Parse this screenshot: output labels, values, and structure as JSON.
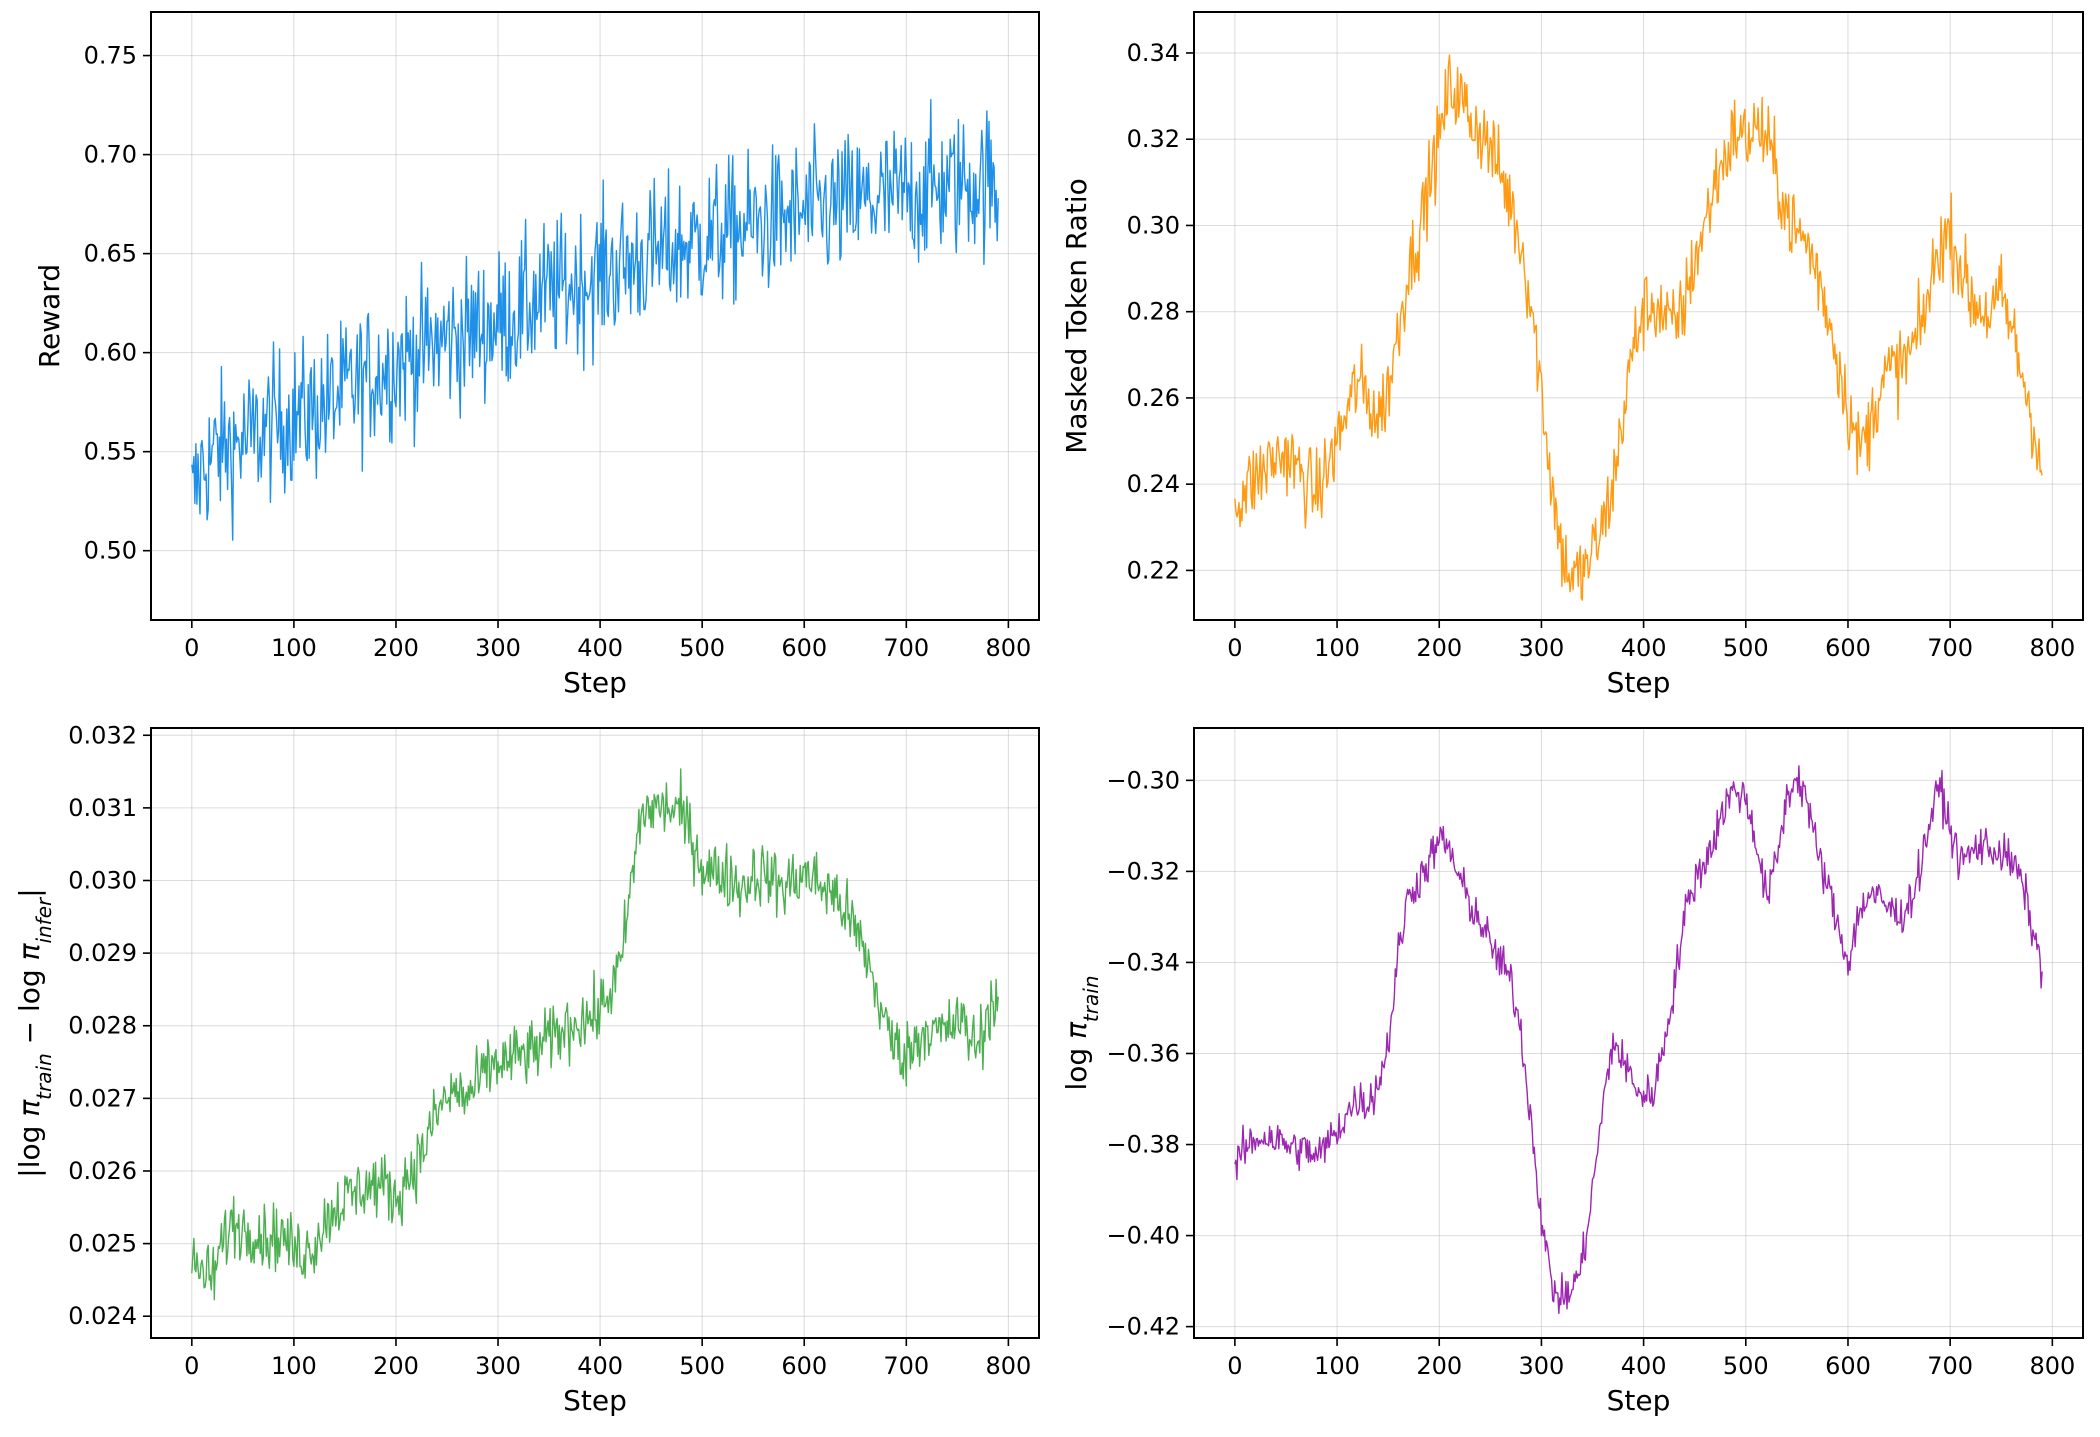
{
  "chart_data": [
    {
      "type": "line",
      "xlabel": "Step",
      "ylabel": "Reward",
      "xlim": [
        -40,
        830
      ],
      "ylim": [
        0.465,
        0.772
      ],
      "xticks": [
        0,
        100,
        200,
        300,
        400,
        500,
        600,
        700,
        800
      ],
      "yticks": [
        0.5,
        0.55,
        0.6,
        0.65,
        0.7,
        0.75
      ],
      "ytick_labels": [
        "0.50",
        "0.55",
        "0.60",
        "0.65",
        "0.70",
        "0.75"
      ],
      "grid": true,
      "color": "#1E90E8",
      "series": [
        {
          "x": [
            0,
            10,
            20,
            30,
            40,
            50,
            60,
            70,
            80,
            90,
            100,
            110,
            120,
            130,
            140,
            150,
            160,
            170,
            180,
            190,
            200,
            210,
            220,
            230,
            240,
            250,
            260,
            270,
            280,
            290,
            300,
            310,
            320,
            330,
            340,
            350,
            360,
            370,
            380,
            390,
            400,
            410,
            420,
            430,
            440,
            450,
            460,
            470,
            480,
            490,
            500,
            510,
            520,
            530,
            540,
            550,
            560,
            570,
            580,
            590,
            600,
            610,
            620,
            630,
            640,
            650,
            660,
            670,
            680,
            690,
            700,
            710,
            720,
            730,
            740,
            750,
            760,
            770,
            780,
            790
          ],
          "values": [
            0.525,
            0.542,
            0.548,
            0.552,
            0.553,
            0.555,
            0.557,
            0.561,
            0.564,
            0.566,
            0.568,
            0.569,
            0.571,
            0.574,
            0.576,
            0.58,
            0.583,
            0.587,
            0.59,
            0.592,
            0.595,
            0.598,
            0.6,
            0.602,
            0.605,
            0.607,
            0.608,
            0.61,
            0.612,
            0.614,
            0.615,
            0.618,
            0.62,
            0.624,
            0.627,
            0.63,
            0.632,
            0.634,
            0.636,
            0.637,
            0.64,
            0.642,
            0.643,
            0.645,
            0.647,
            0.649,
            0.65,
            0.652,
            0.654,
            0.655,
            0.657,
            0.659,
            0.66,
            0.661,
            0.663,
            0.664,
            0.665,
            0.667,
            0.668,
            0.669,
            0.67,
            0.671,
            0.672,
            0.673,
            0.674,
            0.675,
            0.676,
            0.677,
            0.678,
            0.679,
            0.68,
            0.681,
            0.682,
            0.683,
            0.684,
            0.685,
            0.686,
            0.686,
            0.687,
            0.678
          ]
        }
      ]
    },
    {
      "type": "line",
      "xlabel": "Step",
      "ylabel": "Masked Token Ratio",
      "xlim": [
        -40,
        830
      ],
      "ylim": [
        0.2085,
        0.3495
      ],
      "xticks": [
        0,
        100,
        200,
        300,
        400,
        500,
        600,
        700,
        800
      ],
      "yticks": [
        0.22,
        0.24,
        0.26,
        0.28,
        0.3,
        0.32,
        0.34
      ],
      "ytick_labels": [
        "0.22",
        "0.24",
        "0.26",
        "0.28",
        "0.30",
        "0.32",
        "0.34"
      ],
      "grid": true,
      "color": "#FF9A12",
      "series": [
        {
          "x": [
            0,
            10,
            20,
            30,
            40,
            50,
            60,
            70,
            80,
            90,
            100,
            110,
            120,
            130,
            140,
            150,
            160,
            170,
            180,
            190,
            200,
            210,
            220,
            230,
            240,
            250,
            260,
            270,
            280,
            290,
            300,
            310,
            320,
            330,
            340,
            350,
            360,
            370,
            380,
            390,
            400,
            410,
            420,
            430,
            440,
            450,
            460,
            470,
            480,
            490,
            500,
            510,
            520,
            530,
            540,
            550,
            560,
            570,
            580,
            590,
            600,
            610,
            620,
            630,
            640,
            650,
            660,
            670,
            680,
            690,
            700,
            710,
            720,
            730,
            740,
            750,
            760,
            770,
            780,
            790
          ],
          "values": [
            0.235,
            0.239,
            0.241,
            0.244,
            0.246,
            0.247,
            0.244,
            0.24,
            0.238,
            0.243,
            0.25,
            0.257,
            0.264,
            0.26,
            0.255,
            0.262,
            0.276,
            0.29,
            0.298,
            0.31,
            0.32,
            0.332,
            0.33,
            0.325,
            0.322,
            0.318,
            0.312,
            0.305,
            0.296,
            0.282,
            0.262,
            0.24,
            0.224,
            0.218,
            0.219,
            0.224,
            0.23,
            0.24,
            0.256,
            0.272,
            0.28,
            0.282,
            0.279,
            0.276,
            0.282,
            0.292,
            0.3,
            0.31,
            0.316,
            0.322,
            0.32,
            0.323,
            0.32,
            0.312,
            0.303,
            0.298,
            0.296,
            0.289,
            0.28,
            0.269,
            0.258,
            0.248,
            0.252,
            0.262,
            0.266,
            0.267,
            0.27,
            0.275,
            0.285,
            0.296,
            0.298,
            0.291,
            0.283,
            0.281,
            0.279,
            0.284,
            0.276,
            0.266,
            0.256,
            0.242
          ]
        }
      ]
    },
    {
      "type": "line",
      "xlabel": "Step",
      "ylabel": "|log π_train − log π_infer|",
      "xlim": [
        -40,
        830
      ],
      "ylim": [
        0.0237,
        0.0321
      ],
      "xticks": [
        0,
        100,
        200,
        300,
        400,
        500,
        600,
        700,
        800
      ],
      "yticks": [
        0.024,
        0.025,
        0.026,
        0.027,
        0.028,
        0.029,
        0.03,
        0.031,
        0.032
      ],
      "ytick_labels": [
        "0.024",
        "0.025",
        "0.026",
        "0.027",
        "0.028",
        "0.029",
        "0.030",
        "0.031",
        "0.032"
      ],
      "grid": true,
      "color": "#4CAF50",
      "series": [
        {
          "x": [
            0,
            10,
            20,
            30,
            40,
            50,
            60,
            70,
            80,
            90,
            100,
            110,
            120,
            130,
            140,
            150,
            160,
            170,
            180,
            190,
            200,
            210,
            220,
            230,
            240,
            250,
            260,
            270,
            280,
            290,
            300,
            310,
            320,
            330,
            340,
            350,
            360,
            370,
            380,
            390,
            400,
            410,
            420,
            430,
            440,
            450,
            460,
            470,
            480,
            490,
            500,
            510,
            520,
            530,
            540,
            550,
            560,
            570,
            580,
            590,
            600,
            610,
            620,
            630,
            640,
            650,
            660,
            670,
            680,
            690,
            700,
            710,
            720,
            730,
            740,
            750,
            760,
            770,
            780,
            790
          ],
          "values": [
            0.0247,
            0.0246,
            0.0245,
            0.025,
            0.0253,
            0.0252,
            0.0252,
            0.0251,
            0.0251,
            0.0251,
            0.0249,
            0.0249,
            0.025,
            0.0253,
            0.0255,
            0.0256,
            0.0257,
            0.0258,
            0.0258,
            0.0258,
            0.0256,
            0.0259,
            0.0261,
            0.0264,
            0.0268,
            0.027,
            0.0271,
            0.027,
            0.0272,
            0.0274,
            0.0275,
            0.0275,
            0.0276,
            0.0276,
            0.0277,
            0.0278,
            0.0279,
            0.028,
            0.0281,
            0.0281,
            0.0282,
            0.0285,
            0.0288,
            0.0299,
            0.0309,
            0.031,
            0.031,
            0.031,
            0.0309,
            0.0306,
            0.0302,
            0.0301,
            0.0301,
            0.03,
            0.0299,
            0.0301,
            0.0301,
            0.03,
            0.0299,
            0.03,
            0.0301,
            0.03,
            0.0299,
            0.0298,
            0.0296,
            0.0293,
            0.029,
            0.0285,
            0.028,
            0.0277,
            0.0276,
            0.0278,
            0.028,
            0.0279,
            0.0279,
            0.0281,
            0.0279,
            0.0277,
            0.0282,
            0.0284
          ]
        }
      ]
    },
    {
      "type": "line",
      "xlabel": "Step",
      "ylabel": "log π_train",
      "xlim": [
        -40,
        830
      ],
      "ylim": [
        -0.4225,
        -0.2885
      ],
      "xticks": [
        0,
        100,
        200,
        300,
        400,
        500,
        600,
        700,
        800
      ],
      "yticks": [
        -0.42,
        -0.4,
        -0.38,
        -0.36,
        -0.34,
        -0.32,
        -0.3
      ],
      "ytick_labels": [
        "−0.42",
        "−0.40",
        "−0.38",
        "−0.36",
        "−0.34",
        "−0.32",
        "−0.30"
      ],
      "grid": true,
      "color": "#9C27B0",
      "series": [
        {
          "x": [
            0,
            10,
            20,
            30,
            40,
            50,
            60,
            70,
            80,
            90,
            100,
            110,
            120,
            130,
            140,
            150,
            160,
            170,
            180,
            190,
            200,
            210,
            220,
            230,
            240,
            250,
            260,
            270,
            280,
            290,
            300,
            310,
            320,
            330,
            340,
            350,
            360,
            370,
            380,
            390,
            400,
            410,
            420,
            430,
            440,
            450,
            460,
            470,
            480,
            490,
            500,
            510,
            520,
            530,
            540,
            550,
            560,
            570,
            580,
            590,
            600,
            610,
            620,
            630,
            640,
            650,
            660,
            670,
            680,
            690,
            700,
            710,
            720,
            730,
            740,
            750,
            760,
            770,
            780,
            790
          ],
          "values": [
            -0.385,
            -0.381,
            -0.379,
            -0.378,
            -0.379,
            -0.38,
            -0.381,
            -0.381,
            -0.383,
            -0.38,
            -0.377,
            -0.373,
            -0.37,
            -0.371,
            -0.367,
            -0.358,
            -0.338,
            -0.325,
            -0.322,
            -0.318,
            -0.313,
            -0.315,
            -0.322,
            -0.327,
            -0.331,
            -0.336,
            -0.34,
            -0.344,
            -0.355,
            -0.375,
            -0.396,
            -0.411,
            -0.414,
            -0.412,
            -0.406,
            -0.39,
            -0.372,
            -0.357,
            -0.362,
            -0.366,
            -0.37,
            -0.368,
            -0.358,
            -0.345,
            -0.33,
            -0.322,
            -0.318,
            -0.312,
            -0.305,
            -0.302,
            -0.304,
            -0.313,
            -0.326,
            -0.318,
            -0.304,
            -0.299,
            -0.304,
            -0.316,
            -0.323,
            -0.332,
            -0.34,
            -0.33,
            -0.325,
            -0.326,
            -0.328,
            -0.33,
            -0.327,
            -0.32,
            -0.309,
            -0.301,
            -0.311,
            -0.318,
            -0.316,
            -0.314,
            -0.315,
            -0.316,
            -0.318,
            -0.322,
            -0.332,
            -0.342
          ]
        }
      ]
    }
  ]
}
